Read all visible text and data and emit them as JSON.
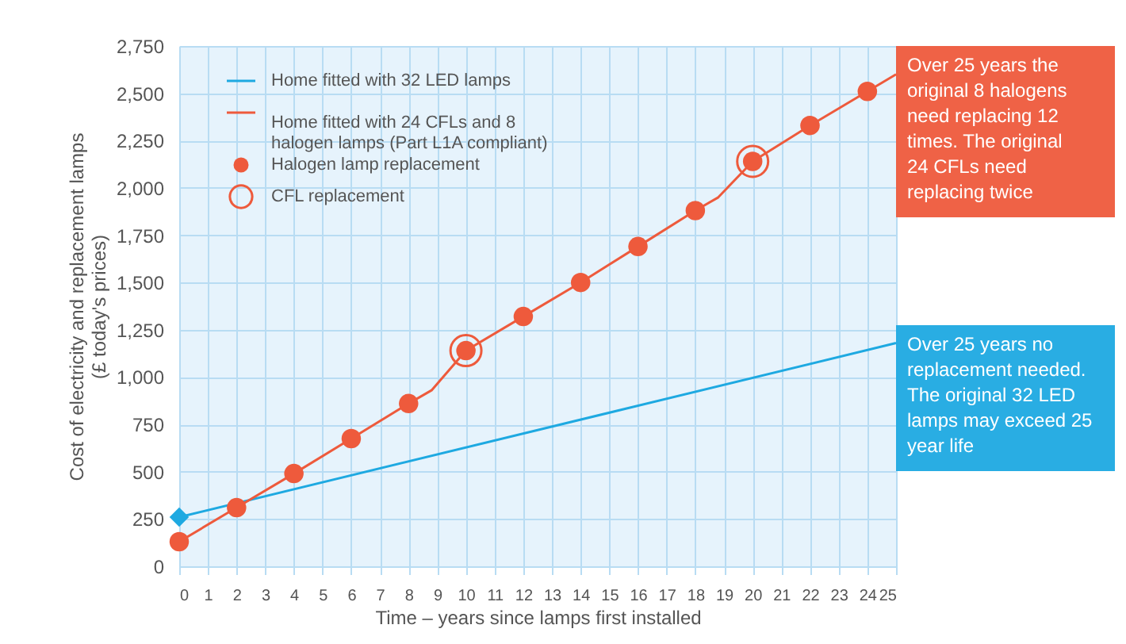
{
  "chart_data": {
    "type": "line",
    "xlabel": "Time – years since lamps first installed",
    "ylabel": "Cost of electricity and replacement lamps (£ today's prices)",
    "xlim": [
      0,
      25
    ],
    "xticks": [
      0,
      1,
      2,
      3,
      4,
      5,
      6,
      7,
      8,
      9,
      10,
      11,
      12,
      13,
      14,
      15,
      16,
      17,
      18,
      19,
      20,
      21,
      22,
      23,
      24,
      25
    ],
    "ylim": [
      0,
      2750
    ],
    "yticks": [
      0,
      250,
      500,
      750,
      {
        "value": 1000,
        "label": "1,000"
      },
      {
        "value": 1250,
        "label": "1,250"
      },
      {
        "value": 1500,
        "label": "1,500"
      },
      {
        "value": 1750,
        "label": "1,750"
      },
      {
        "value": 2000,
        "label": "2,000"
      },
      {
        "value": 2250,
        "label": "2,250"
      },
      {
        "value": 2500,
        "label": "2,500"
      },
      {
        "value": 2750,
        "label": "2,750"
      }
    ],
    "grid": true,
    "legend": "top left",
    "series": [
      {
        "name": "Home fitted with 32 LED lamps",
        "color": "#1ea9e1",
        "x": [
          0,
          25
        ],
        "values": [
          260,
          1180
        ]
      },
      {
        "name": "Home fitted with 24 CFLs and 8 halogen lamps (Part L1A compliant)",
        "color": "#ee5a3c",
        "x": [
          0,
          2,
          4,
          6,
          8,
          8.8,
          10,
          12,
          14,
          16,
          18,
          18.8,
          20,
          22,
          24,
          25
        ],
        "values": [
          130,
          310,
          490,
          675,
          860,
          930,
          1140,
          1320,
          1500,
          1690,
          1880,
          1950,
          2140,
          2330,
          2510,
          2600
        ]
      },
      {
        "name": "Halogen lamp replacement",
        "type": "scatter",
        "marker": "circle",
        "color": "#ee5a3c",
        "x": [
          0,
          2,
          4,
          6,
          8,
          10,
          12,
          14,
          16,
          18,
          20,
          22,
          24
        ],
        "values": [
          130,
          310,
          490,
          675,
          860,
          1140,
          1320,
          1500,
          1690,
          1880,
          2140,
          2330,
          2510
        ]
      },
      {
        "name": "CFL replacement",
        "type": "scatter",
        "marker": "circle",
        "color": "#ee5a3c",
        "x": [
          10,
          20
        ],
        "values": [
          1140,
          2140
        ]
      },
      {
        "type": "scatter",
        "marker": "diamond",
        "color": "#1ea9e1",
        "x": [
          0
        ],
        "values": [
          260
        ]
      }
    ],
    "annotations": [
      "Over 25 years the original 8 halogens need replacing 12 times. The original 24 CFLs need replacing twice",
      "Over 25 years no replacement needed. The original 32 LED lamps may exceed 25 year life"
    ]
  }
}
